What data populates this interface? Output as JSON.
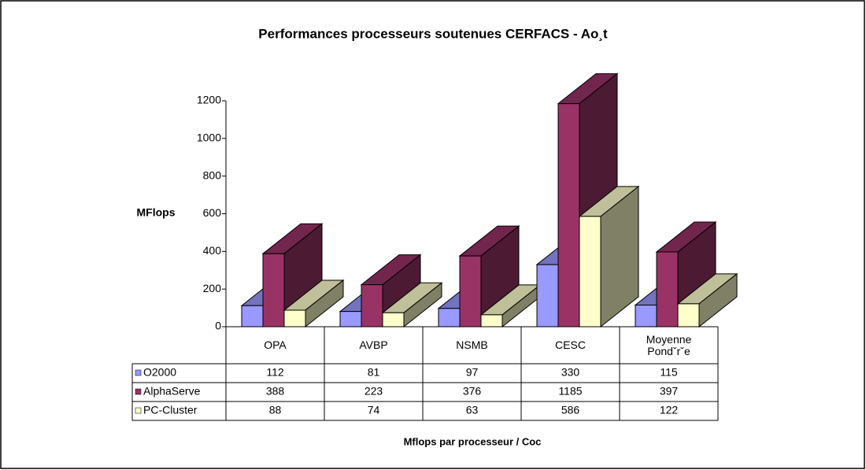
{
  "chart_data": {
    "type": "bar3d",
    "title": "Performances processeurs soutenues CERFACS - Ao¸t",
    "y_label": "MFlops",
    "x_label": "Mflops par processeur / Coc",
    "categories": [
      "OPA",
      "AVBP",
      "NSMB",
      "CESC",
      "Moyenne Pondˇrˇe"
    ],
    "series": [
      {
        "name": "O2000",
        "color": "#9999ff",
        "values": [
          112,
          81,
          97,
          330,
          115
        ]
      },
      {
        "name": "AlphaServe",
        "color": "#993366",
        "values": [
          388,
          223,
          376,
          1185,
          397
        ]
      },
      {
        "name": "PC-Cluster",
        "color": "#ffffcc",
        "values": [
          88,
          74,
          63,
          586,
          122
        ]
      }
    ],
    "ylim": [
      0,
      1200
    ],
    "yticks": [
      0,
      200,
      400,
      600,
      800,
      1000,
      1200
    ]
  }
}
